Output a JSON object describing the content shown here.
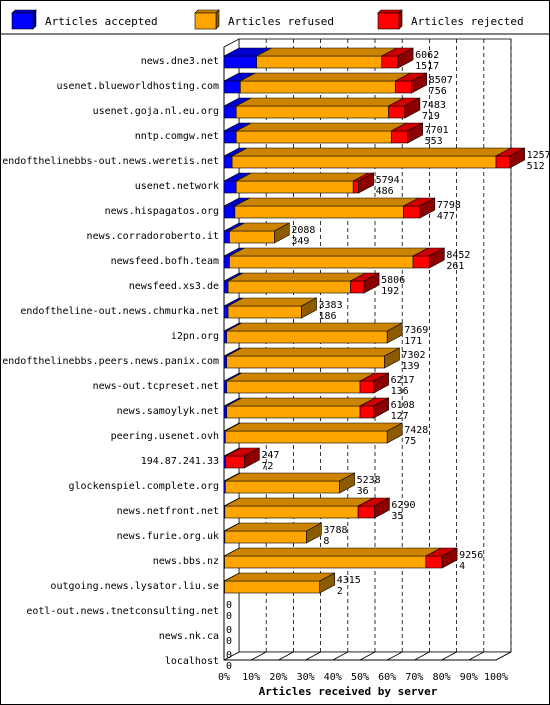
{
  "chart_data": {
    "type": "bar",
    "orientation": "horizontal",
    "stacked": true,
    "xlabel": "Articles received by server",
    "x_ticks": [
      "0%",
      "10%",
      "20%",
      "30%",
      "40%",
      "50%",
      "60%",
      "70%",
      "80%",
      "90%",
      "100%"
    ],
    "xlim": [
      0,
      100
    ],
    "grid": true,
    "legend_position": "top",
    "series": [
      {
        "name": "Articles accepted",
        "color": "#0000ff",
        "values_pct": [
          12.0,
          6.0,
          4.5,
          4.5,
          3.0,
          4.5,
          4.0,
          2.0,
          2.0,
          1.5,
          1.5,
          1.0,
          1.0,
          1.0,
          1.0,
          0.5,
          0.5,
          0.5,
          0.3,
          0.3,
          0.2,
          0.2,
          0,
          0,
          0
        ]
      },
      {
        "name": "Articles refused",
        "color": "#ffa500",
        "values_pct": [
          46.0,
          57.0,
          56.0,
          57.0,
          97.0,
          43.0,
          62.0,
          16.5,
          67.5,
          45.0,
          27.0,
          59.0,
          58.0,
          49.0,
          49.0,
          59.5,
          0,
          42.0,
          49.0,
          30.0,
          74.0,
          35.0,
          0,
          0,
          0
        ]
      },
      {
        "name": "Articles rejected",
        "color": "#ff0000",
        "values_pct": [
          6.0,
          6.0,
          6.0,
          6.0,
          5.0,
          2.0,
          6.0,
          0,
          6.0,
          5.0,
          0,
          0,
          0,
          5.0,
          5.0,
          0,
          7.0,
          0,
          6.0,
          0,
          6.0,
          0,
          0,
          0,
          0
        ]
      }
    ],
    "rows": [
      {
        "server": "news.dne3.net",
        "top_label": "6062",
        "bottom_label": "1517"
      },
      {
        "server": "usenet.blueworldhosting.com",
        "top_label": "8507",
        "bottom_label": "756"
      },
      {
        "server": "usenet.goja.nl.eu.org",
        "top_label": "7483",
        "bottom_label": "719"
      },
      {
        "server": "nntp.comgw.net",
        "top_label": "7701",
        "bottom_label": "553"
      },
      {
        "server": "endofthelinebbs-out.news.weretis.net",
        "top_label": "12572",
        "bottom_label": "512"
      },
      {
        "server": "usenet.network",
        "top_label": "5794",
        "bottom_label": "486"
      },
      {
        "server": "news.hispagatos.org",
        "top_label": "7798",
        "bottom_label": "477"
      },
      {
        "server": "news.corradoroberto.it",
        "top_label": "2088",
        "bottom_label": "349"
      },
      {
        "server": "newsfeed.bofh.team",
        "top_label": "8452",
        "bottom_label": "261"
      },
      {
        "server": "newsfeed.xs3.de",
        "top_label": "5806",
        "bottom_label": "192"
      },
      {
        "server": "endoftheline-out.news.chmurka.net",
        "top_label": "3383",
        "bottom_label": "186"
      },
      {
        "server": "i2pn.org",
        "top_label": "7369",
        "bottom_label": "171"
      },
      {
        "server": "endofthelinebbs.peers.news.panix.com",
        "top_label": "7302",
        "bottom_label": "139"
      },
      {
        "server": "news-out.tcpreset.net",
        "top_label": "6217",
        "bottom_label": "136"
      },
      {
        "server": "news.samoylyk.net",
        "top_label": "6108",
        "bottom_label": "127"
      },
      {
        "server": "peering.usenet.ovh",
        "top_label": "7428",
        "bottom_label": "75"
      },
      {
        "server": "194.87.241.33",
        "top_label": "247",
        "bottom_label": "72"
      },
      {
        "server": "glockenspiel.complete.org",
        "top_label": "5238",
        "bottom_label": "36"
      },
      {
        "server": "news.netfront.net",
        "top_label": "6290",
        "bottom_label": "35"
      },
      {
        "server": "news.furie.org.uk",
        "top_label": "3788",
        "bottom_label": "8"
      },
      {
        "server": "news.bbs.nz",
        "top_label": "9256",
        "bottom_label": "4"
      },
      {
        "server": "outgoing.news.lysator.liu.se",
        "top_label": "4315",
        "bottom_label": "2"
      },
      {
        "server": "eotl-out.news.tnetconsulting.net",
        "top_label": "0",
        "bottom_label": "0"
      },
      {
        "server": "news.nk.ca",
        "top_label": "0",
        "bottom_label": "0"
      },
      {
        "server": "localhost",
        "top_label": "0",
        "bottom_label": "0"
      }
    ]
  }
}
